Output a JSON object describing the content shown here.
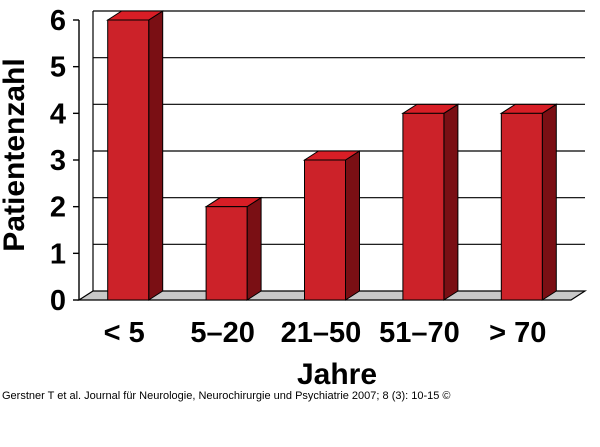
{
  "chart_data": {
    "type": "bar",
    "categories": [
      "< 5",
      "5–20",
      "21–50",
      "51–70",
      "> 70"
    ],
    "values": [
      6,
      2,
      3,
      4,
      4
    ],
    "xlabel": "Jahre",
    "ylabel": "Patientenzahl",
    "ylim": [
      0,
      6
    ],
    "yticks": [
      0,
      1,
      2,
      3,
      4,
      5,
      6
    ],
    "grid": true,
    "bar_color": "#cc2229",
    "bar_side_color": "#7a0f14",
    "bar_top_color": "#d81e26"
  },
  "citation": "Gerstner T et al. Journal für Neurologie, Neurochirurgie und Psychiatrie 2007; 8 (3): 10-15 ©"
}
